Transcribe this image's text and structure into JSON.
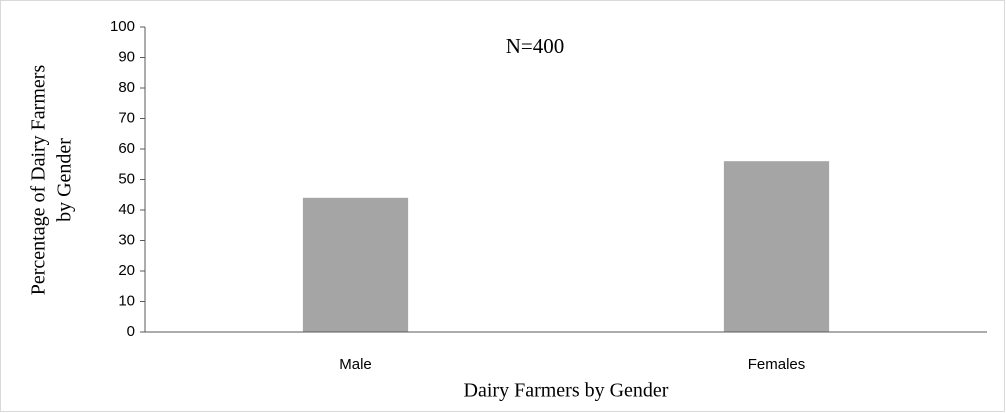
{
  "chart_data": {
    "type": "bar",
    "annotation": "N=400",
    "ylabel": [
      "Percentage of Dairy Farmers",
      "by Gender"
    ],
    "xlabel": "Dairy Farmers by Gender",
    "categories": [
      "Male",
      "Females"
    ],
    "values": [
      44,
      56
    ],
    "color": "#a5a5a5",
    "ylim": [
      0,
      100
    ],
    "yticks": [
      0,
      10,
      20,
      30,
      40,
      50,
      60,
      70,
      80,
      90,
      100
    ],
    "grid": false
  }
}
